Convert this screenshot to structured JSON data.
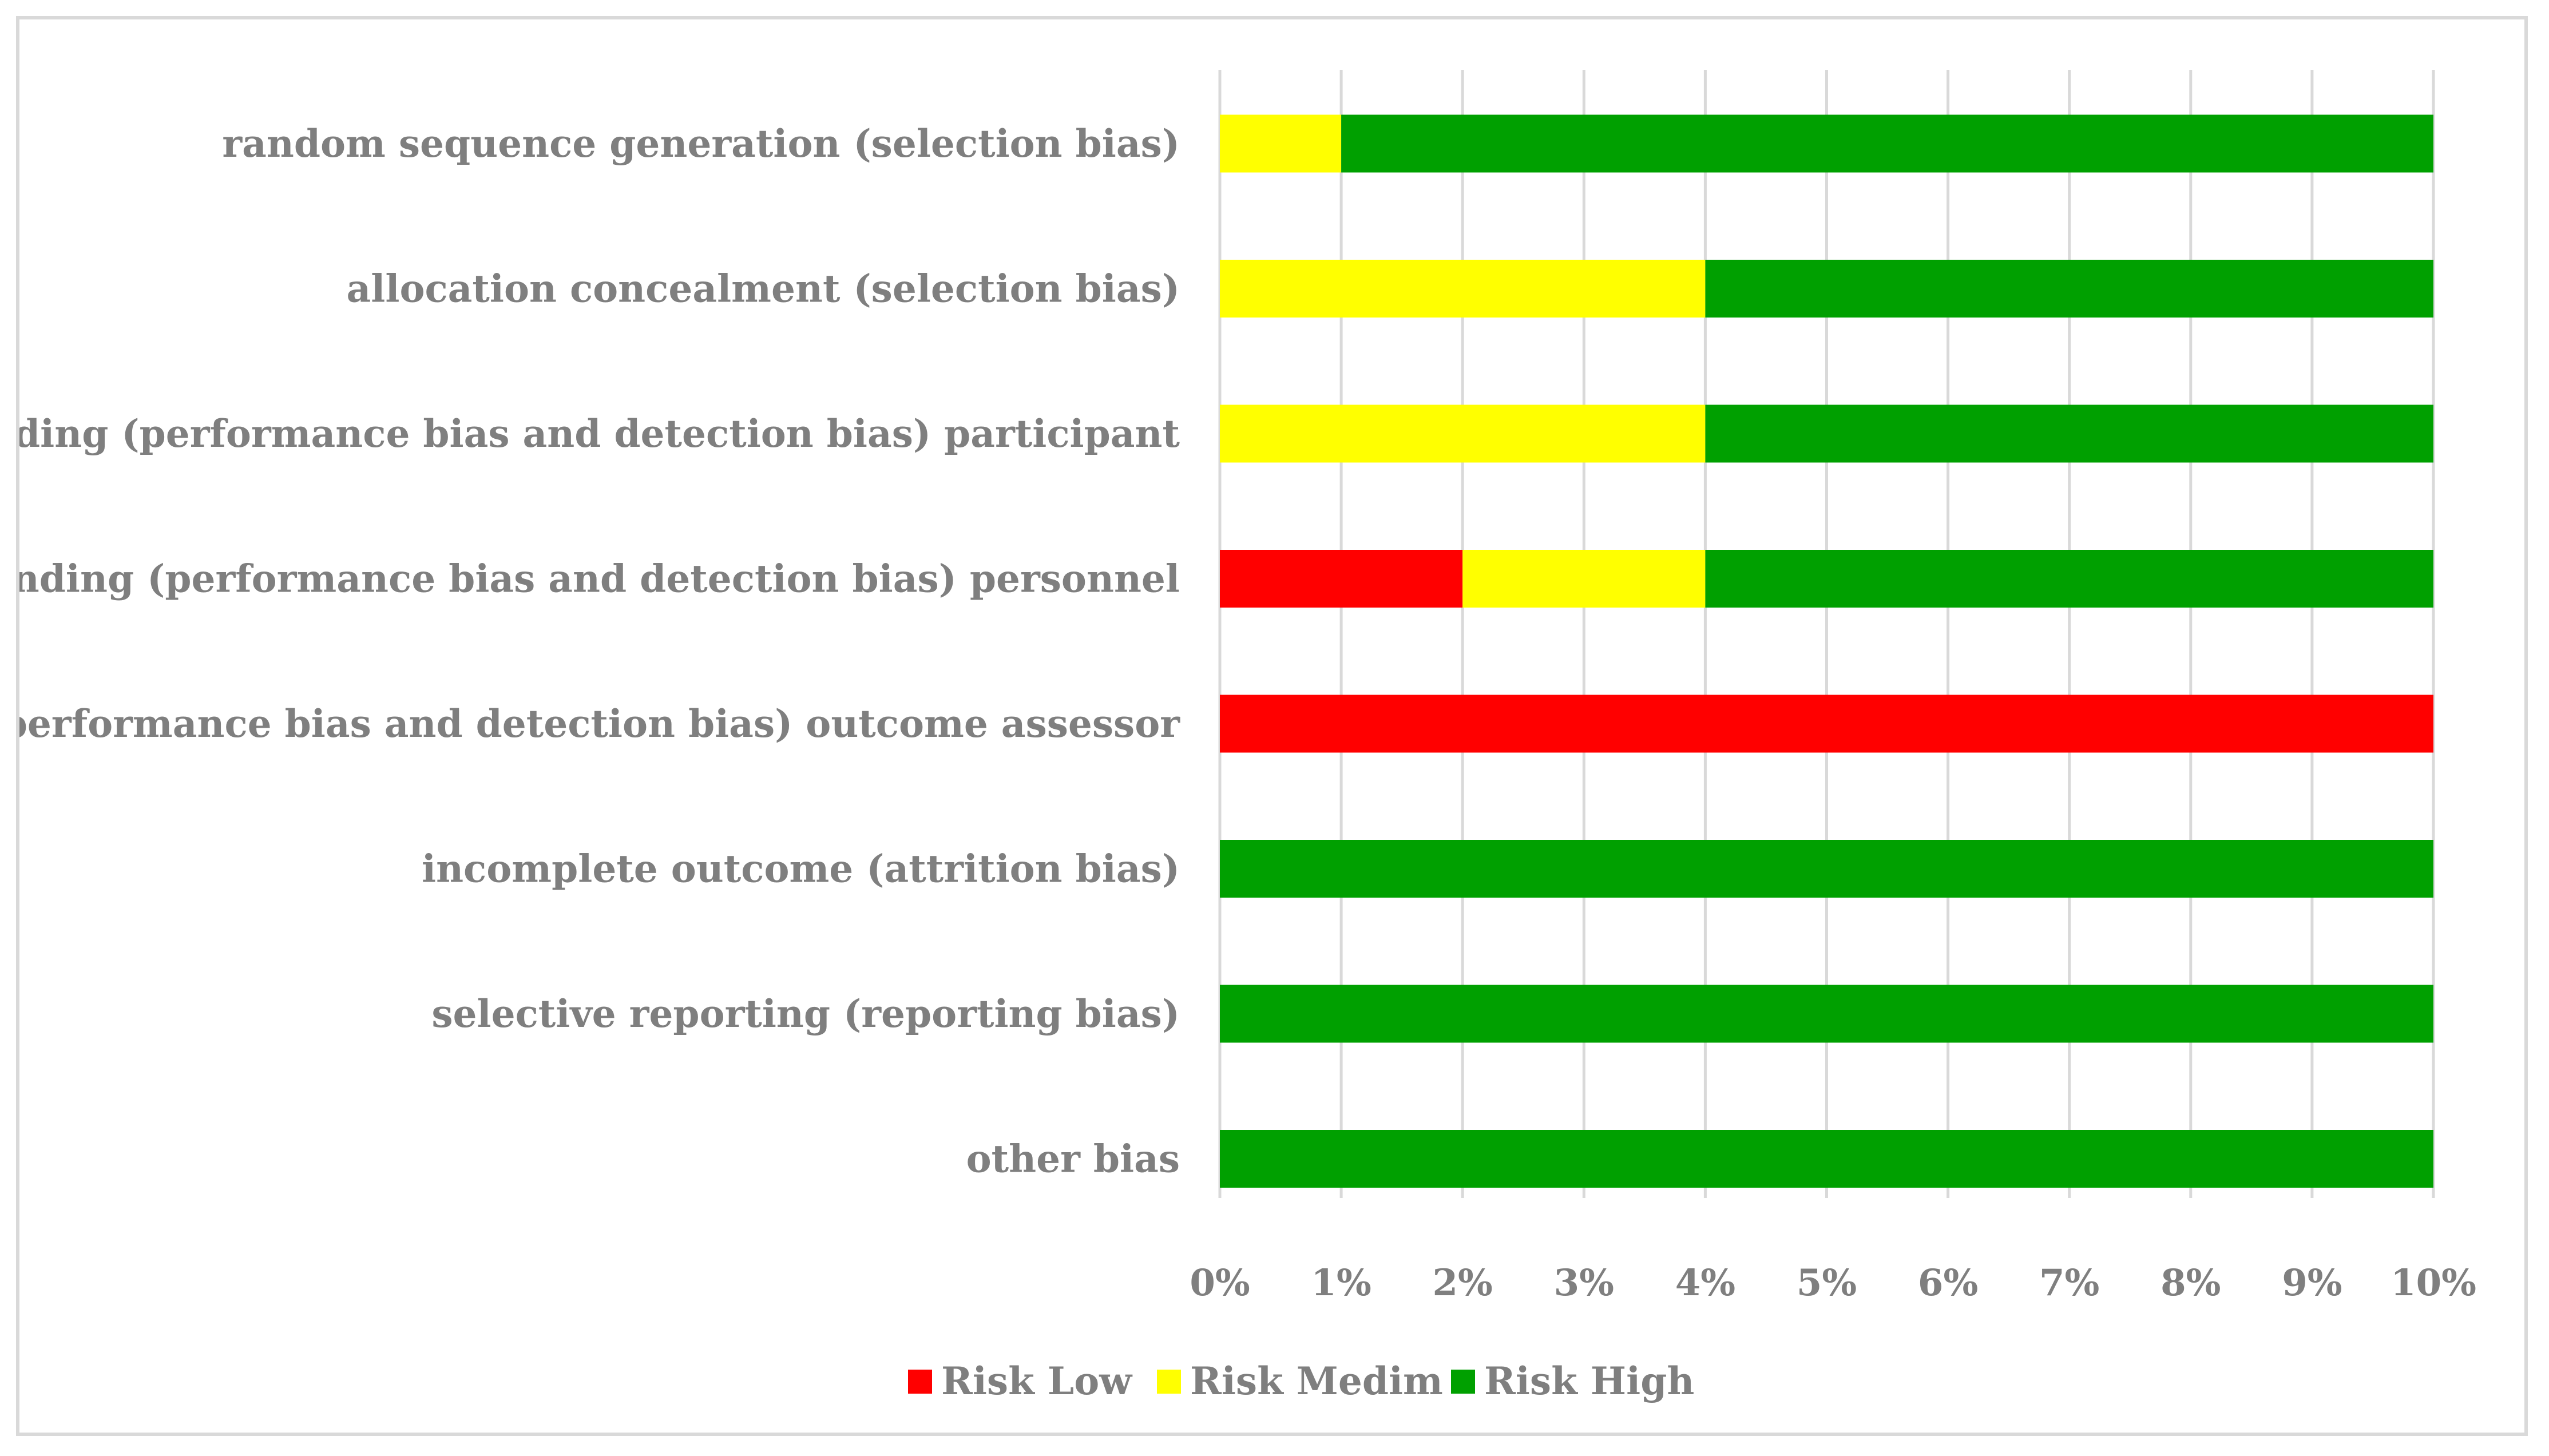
{
  "chart_data": {
    "type": "bar",
    "orientation": "horizontal",
    "stacked": true,
    "title": "",
    "xlabel": "",
    "ylabel": "",
    "xlim": [
      0,
      10
    ],
    "x_ticks": [
      "0%",
      "1%",
      "2%",
      "3%",
      "4%",
      "5%",
      "6%",
      "7%",
      "8%",
      "9%",
      "10%"
    ],
    "grid": "vertical",
    "legend_position": "bottom",
    "categories": [
      "random sequence generation (selection bias)",
      "allocation concealment (selection bias)",
      "blinding (performance bias and detection bias) participant",
      "blinding (performance bias and detection bias) personnel",
      "blinding (performance bias and detection bias) outcome assessor",
      "incomplete outcome (attrition bias)",
      "selective reporting (reporting bias)",
      "other bias"
    ],
    "series": [
      {
        "name": "Risk Low",
        "color": "#ff0000",
        "values": [
          0,
          0,
          0,
          2,
          10,
          0,
          0,
          0
        ]
      },
      {
        "name": "Risk Medim",
        "color": "#ffff00",
        "values": [
          1,
          4,
          4,
          2,
          0,
          0,
          0,
          0
        ]
      },
      {
        "name": "Risk High",
        "color": "#00a000",
        "values": [
          9,
          6,
          6,
          6,
          0,
          10,
          10,
          10
        ]
      }
    ]
  }
}
